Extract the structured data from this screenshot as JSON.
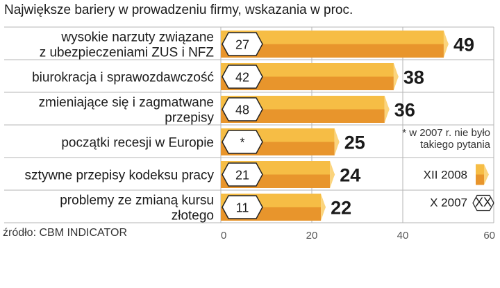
{
  "chart_data": {
    "type": "bar",
    "title": "Największe bariery w prowadzeniu firmy, wskazania w proc.",
    "orientation": "horizontal",
    "categories": [
      [
        "wysokie narzuty związane",
        "z ubezpieczeniami ZUS i NFZ"
      ],
      [
        "biurokracja i sprawozdawczość"
      ],
      [
        "zmieniające się i zagmatwane",
        "przepisy"
      ],
      [
        "początki recesji w Europie"
      ],
      [
        "sztywne przepisy kodeksu pracy"
      ],
      [
        "problemy ze zmianą kursu",
        "złotego"
      ]
    ],
    "series": [
      {
        "name": "XII 2008",
        "values": [
          49,
          38,
          36,
          25,
          24,
          22
        ],
        "labels": [
          "49",
          "38",
          "36",
          "25",
          "24",
          "22"
        ]
      },
      {
        "name": "X 2007",
        "values": [
          27,
          42,
          48,
          null,
          21,
          11
        ],
        "labels": [
          "27",
          "42",
          "48",
          "*",
          "21",
          "11"
        ]
      }
    ],
    "xlim": [
      0,
      60
    ],
    "xticks": [
      0,
      20,
      40,
      60
    ],
    "xtick_labels": [
      "0",
      "20",
      "40",
      "60"
    ],
    "grid": true,
    "legend": [
      {
        "label": "XII 2008",
        "marker": "bar-end"
      },
      {
        "label": "X 2007",
        "marker": "tag",
        "marker_text": "XX"
      }
    ],
    "legend_placement": "bottom-right",
    "annotations": [
      "* w 2007 r. nie było",
      "takiego pytania"
    ],
    "source": "źródło: CBM INDICATOR",
    "colors": {
      "bar_light": "#f6bd45",
      "bar_dark": "#e8952c",
      "bar_end": "#fbd47c",
      "grid": "#b5b5b5",
      "tag_fill": "#ffffff",
      "tag_stroke": "#222222"
    }
  }
}
